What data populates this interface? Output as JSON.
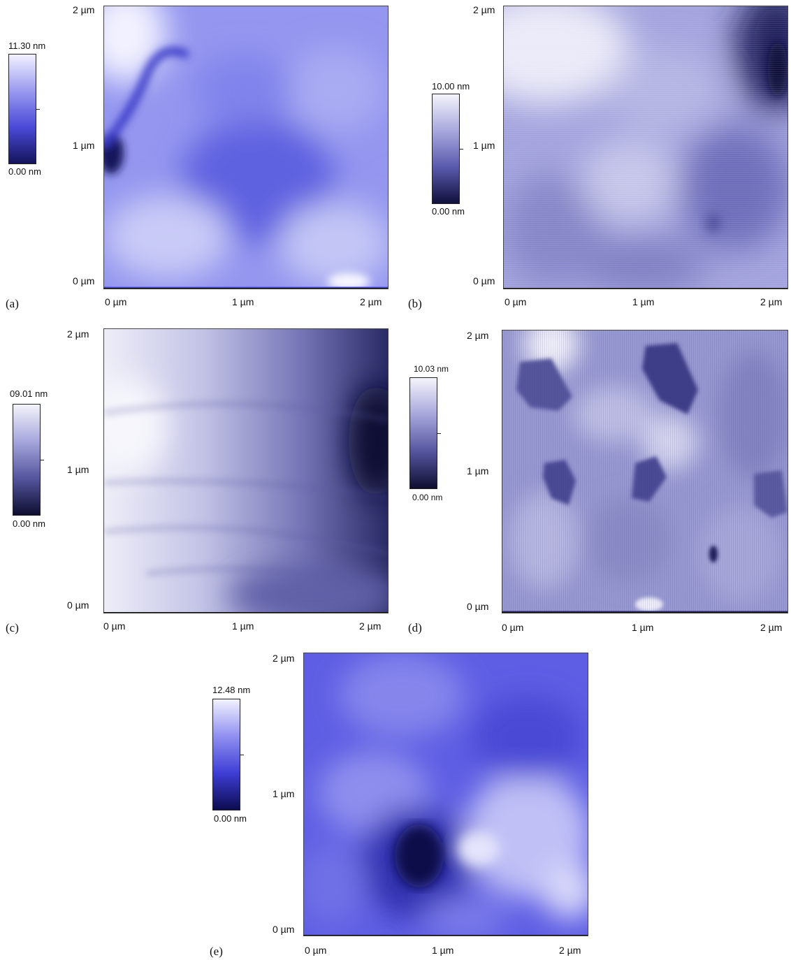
{
  "panels": [
    {
      "id": "a",
      "label": "(a)",
      "y_ticks": [
        "2 µm",
        "1 µm",
        "0 µm"
      ],
      "x_ticks": [
        "0 µm",
        "1 µm",
        "2 µm"
      ],
      "colorbar": {
        "max": "11.30 nm",
        "min": "0.00 nm",
        "gradient": [
          "#f2f2ff",
          "#9a9af0",
          "#4a4ad8",
          "#14145c"
        ]
      },
      "surface_color": "#8c8ff0"
    },
    {
      "id": "b",
      "label": "(b)",
      "y_ticks": [
        "2 µm",
        "1 µm",
        "0 µm"
      ],
      "x_ticks": [
        "0 µm",
        "1 µm",
        "2 µm"
      ],
      "colorbar": {
        "max": "10.00 nm",
        "min": "0.00 nm",
        "gradient": [
          "#f4f4fb",
          "#a8a8de",
          "#5a5aae",
          "#10103c"
        ]
      },
      "surface_color": "#9494d6"
    },
    {
      "id": "c",
      "label": "(c)",
      "y_ticks": [
        "2 µm",
        "1 µm",
        "0 µm"
      ],
      "x_ticks": [
        "0 µm",
        "1 µm",
        "2 µm"
      ],
      "colorbar": {
        "max": "09.01 nm",
        "min": "0.00 nm",
        "gradient": [
          "#f4f4fb",
          "#a6a6dc",
          "#55559f",
          "#0e0e30"
        ]
      },
      "surface_color": "#a2a2da"
    },
    {
      "id": "d",
      "label": "(d)",
      "y_ticks": [
        "2 µm",
        "1 µm",
        "0 µm"
      ],
      "x_ticks": [
        "0 µm",
        "1 µm",
        "2 µm"
      ],
      "colorbar": {
        "max": "10.03 nm",
        "min": "0.00 nm",
        "gradient": [
          "#f4f4fb",
          "#a6a6dc",
          "#55559f",
          "#0e0e30"
        ]
      },
      "surface_color": "#8a8ac8"
    },
    {
      "id": "e",
      "label": "(e)",
      "y_ticks": [
        "2 µm",
        "1 µm",
        "0 µm"
      ],
      "x_ticks": [
        "0 µm",
        "1 µm",
        "2 µm"
      ],
      "colorbar": {
        "max": "12.48 nm",
        "min": "0.00 nm",
        "gradient": [
          "#f2f2ff",
          "#9090f0",
          "#3e3ed6",
          "#0c0c50"
        ]
      },
      "surface_color": "#6a6ae6"
    }
  ]
}
